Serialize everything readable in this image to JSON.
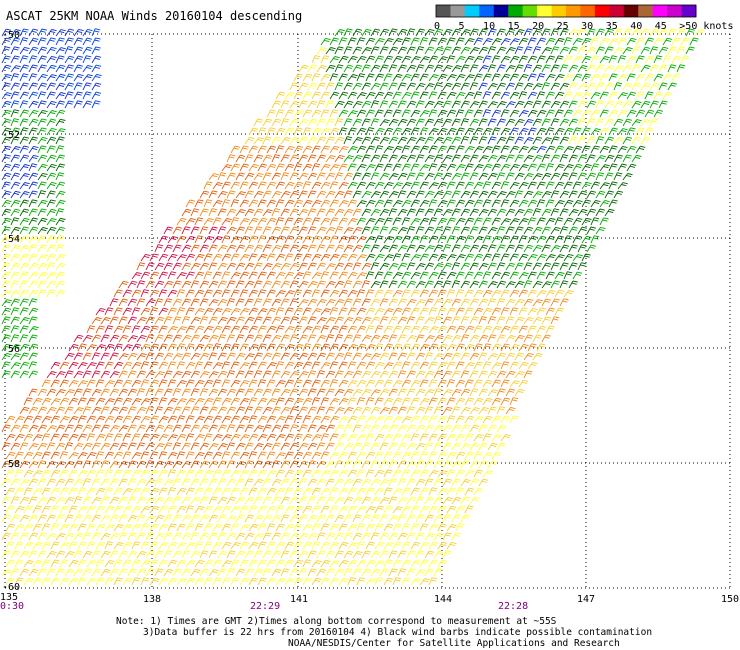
{
  "title": "ASCAT 25KM NOAA Winds 20160104 descending",
  "legend": {
    "labels": [
      "0",
      "5",
      "10",
      "15",
      "20",
      "25",
      "30",
      "35",
      "40",
      "45",
      ">50 knots"
    ],
    "colors": [
      "#555555",
      "#999999",
      "#00ccff",
      "#0066ff",
      "#000099",
      "#00aa00",
      "#66dd00",
      "#ffff33",
      "#ffcc00",
      "#ff9900",
      "#ff6600",
      "#ff0000",
      "#cc0033",
      "#660000",
      "#aa6633",
      "#ff00ff",
      "#cc00cc",
      "#6600cc"
    ]
  },
  "axes": {
    "lat_labels": [
      "-50",
      "-52",
      "-54",
      "-56",
      "-58",
      "-60"
    ],
    "lon_labels": [
      "135",
      "138",
      "141",
      "144",
      "147",
      "150"
    ],
    "lon_range": [
      135,
      150
    ],
    "lat_range": [
      -60,
      -50
    ]
  },
  "pass_times": [
    "0:30",
    "22:29",
    "22:28"
  ],
  "notes": [
    "Note: 1) Times are GMT 2)Times along bottom correspond to measurement at ~55S",
    "3)Data buffer is 22 hrs from 20160104 4) Black wind barbs indicate possible contamination",
    "NOAA/NESDIS/Center for Satellite Applications and Research"
  ],
  "speed_colors": {
    "blue": "#1133cc",
    "green": "#00aa00",
    "dark_green": "#006600",
    "yellow": "#ffff33",
    "gold": "#f5d033",
    "orange": "#f08c1c",
    "dark_orange": "#e06010",
    "red": "#cc1144"
  }
}
